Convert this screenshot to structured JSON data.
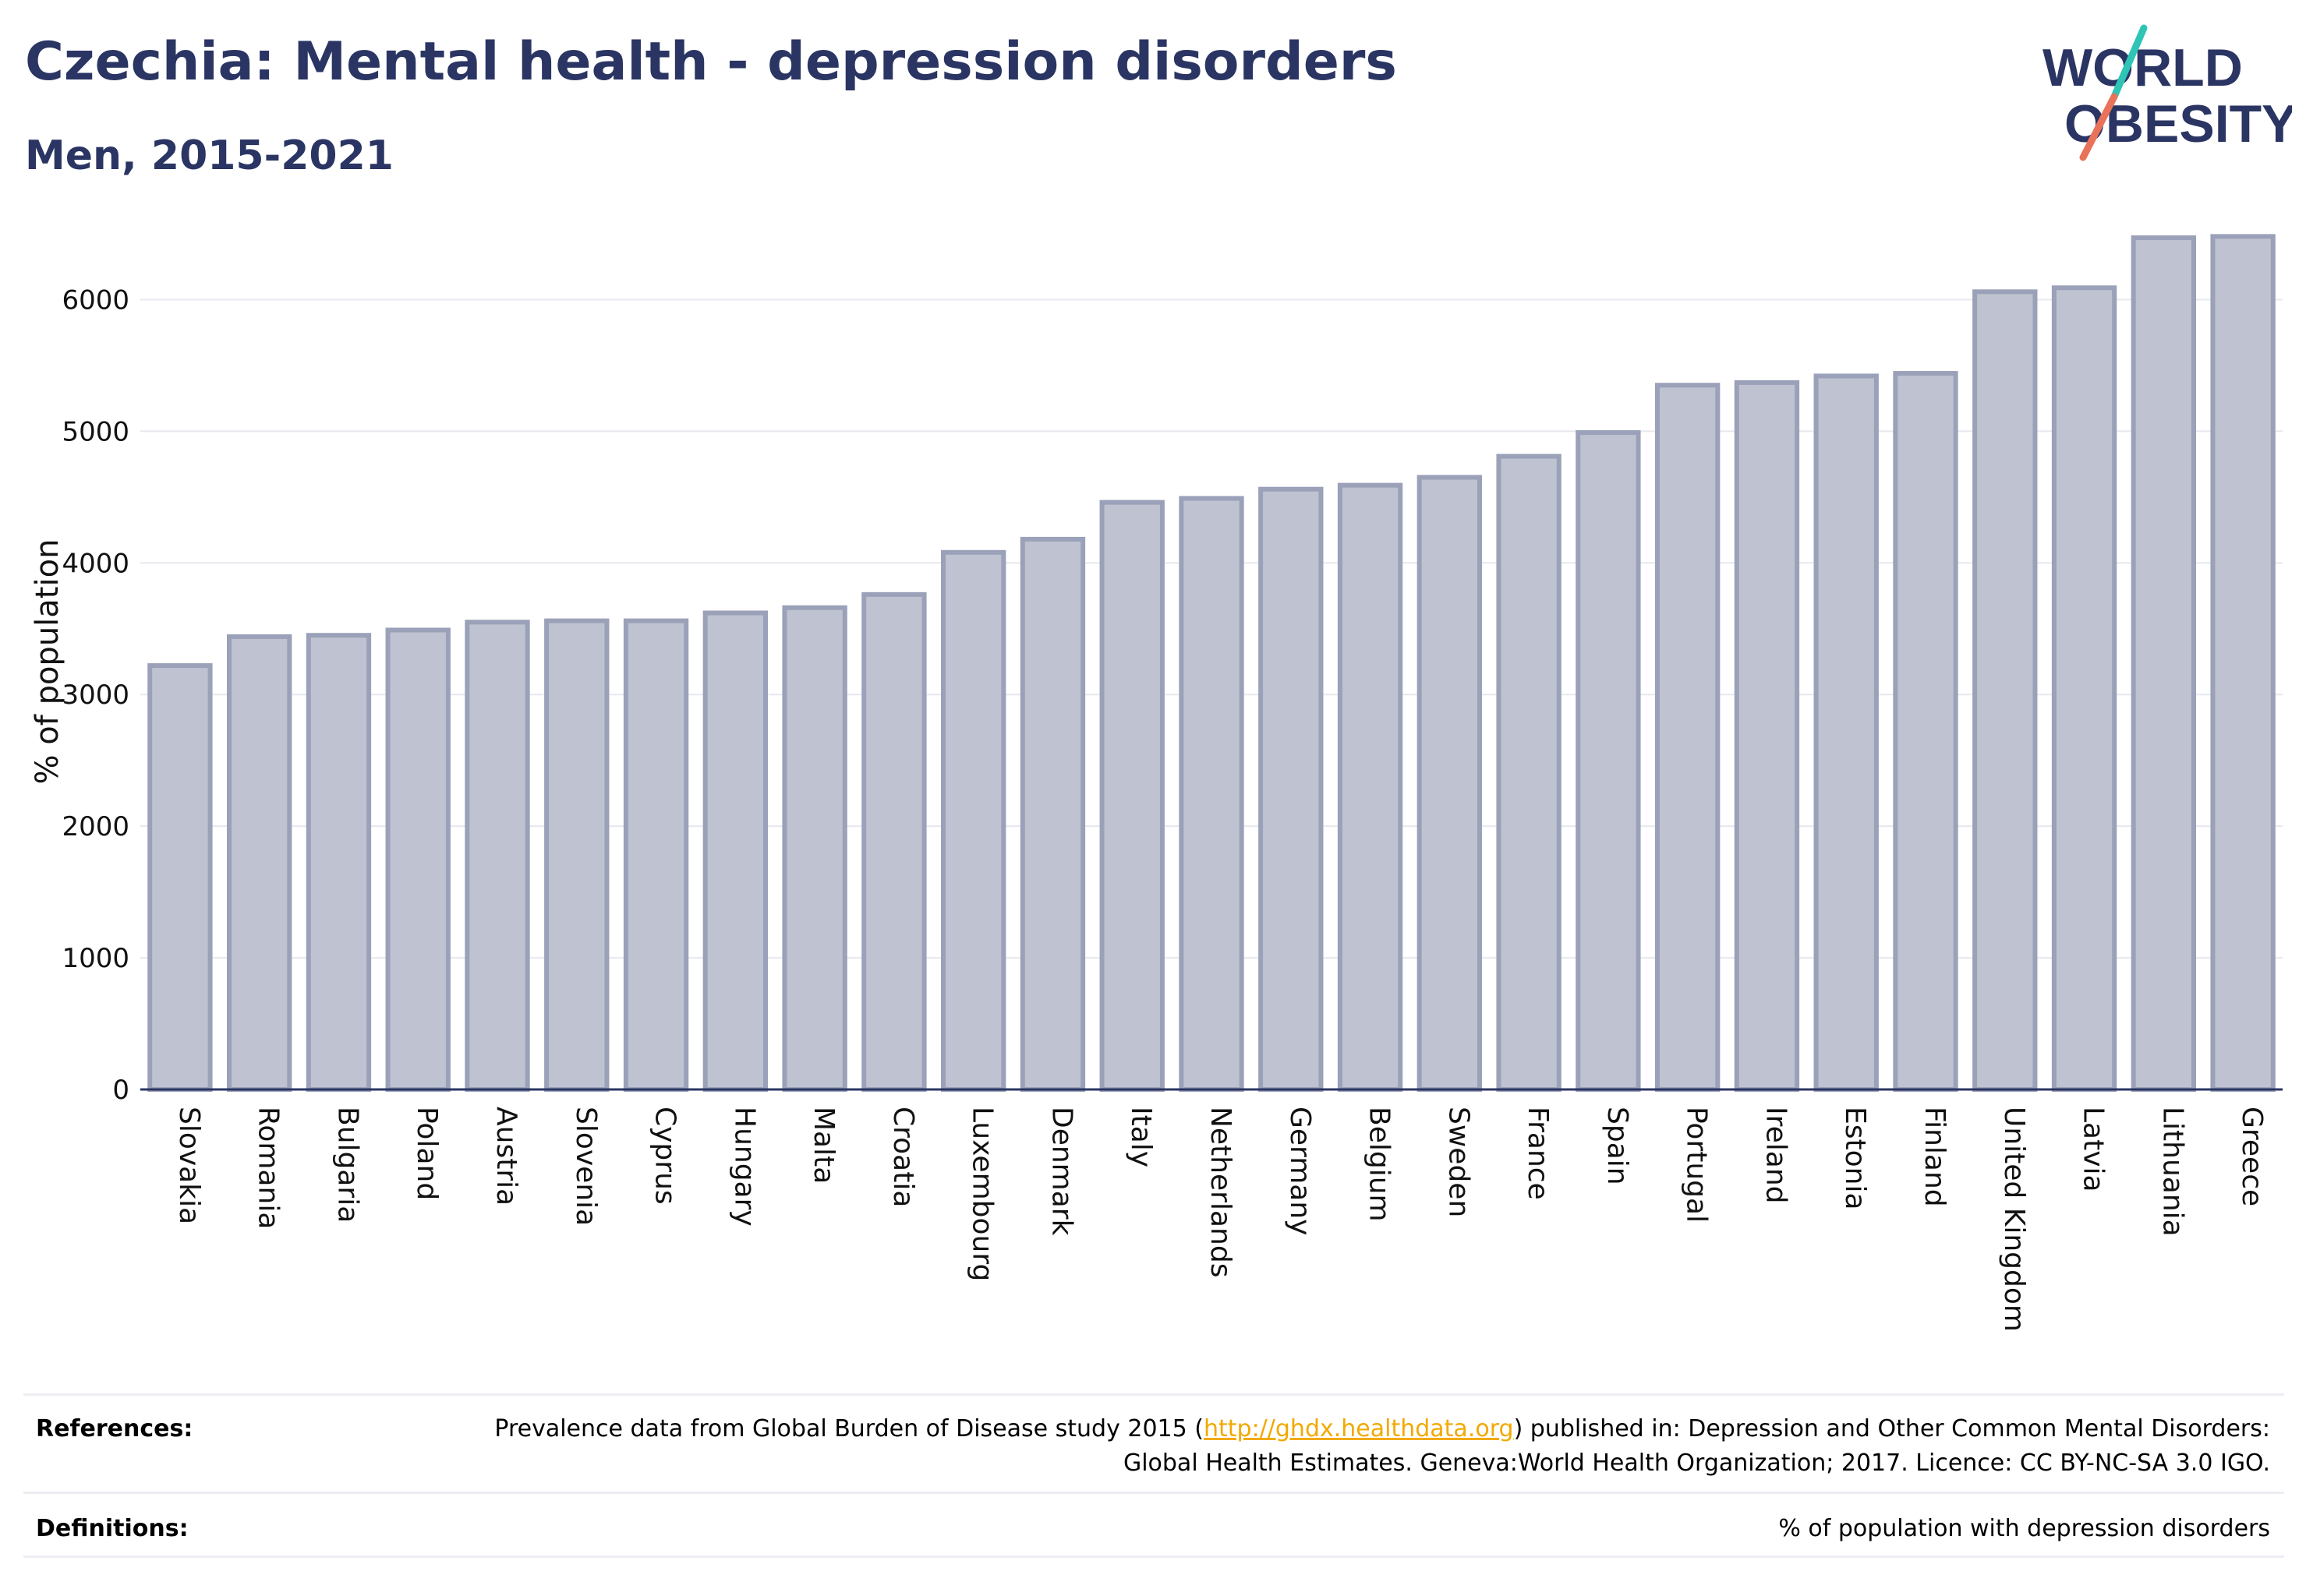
{
  "header": {
    "title": "Czechia: Mental health - depression disorders",
    "subtitle": "Men, 2015-2021"
  },
  "logo": {
    "line1": "WORLD",
    "line2": "OBESITY",
    "text_color": "#2b3563",
    "slash_color_top": "#2ec4b6",
    "slash_color_bottom": "#e8735a"
  },
  "chart_data": {
    "type": "bar",
    "title": "Czechia: Mental health - depression disorders",
    "subtitle": "Men, 2015-2021",
    "ylabel": "% of population",
    "xlabel": "",
    "ylim": [
      0,
      6500
    ],
    "yticks": [
      0,
      1000,
      2000,
      3000,
      4000,
      5000,
      6000
    ],
    "grid": true,
    "bar_fill": "#bfc3d1",
    "bar_stroke": "#9aa1b8",
    "categories": [
      "Slovakia",
      "Romania",
      "Bulgaria",
      "Poland",
      "Austria",
      "Slovenia",
      "Cyprus",
      "Hungary",
      "Malta",
      "Croatia",
      "Luxembourg",
      "Denmark",
      "Italy",
      "Netherlands",
      "Germany",
      "Belgium",
      "Sweden",
      "France",
      "Spain",
      "Portugal",
      "Ireland",
      "Estonia",
      "Finland",
      "United Kingdom",
      "Latvia",
      "Lithuania",
      "Greece"
    ],
    "values": [
      3220,
      3440,
      3450,
      3490,
      3550,
      3560,
      3560,
      3620,
      3660,
      3760,
      4080,
      4180,
      4460,
      4490,
      4560,
      4590,
      4650,
      4810,
      4990,
      5350,
      5370,
      5420,
      5440,
      6060,
      6090,
      6470,
      6480
    ]
  },
  "footer": {
    "references_label": "References:",
    "references_text_before": "Prevalence data from Global Burden of Disease study 2015 (",
    "references_link": "http://ghdx.healthdata.org",
    "references_text_after": ") published in: Depression and Other Common Mental Disorders: Global Health Estimates. Geneva:World Health Organization; 2017. Licence: CC BY-NC-SA 3.0 IGO.",
    "definitions_label": "Definitions:",
    "definitions_text": "% of population with depression disorders"
  }
}
